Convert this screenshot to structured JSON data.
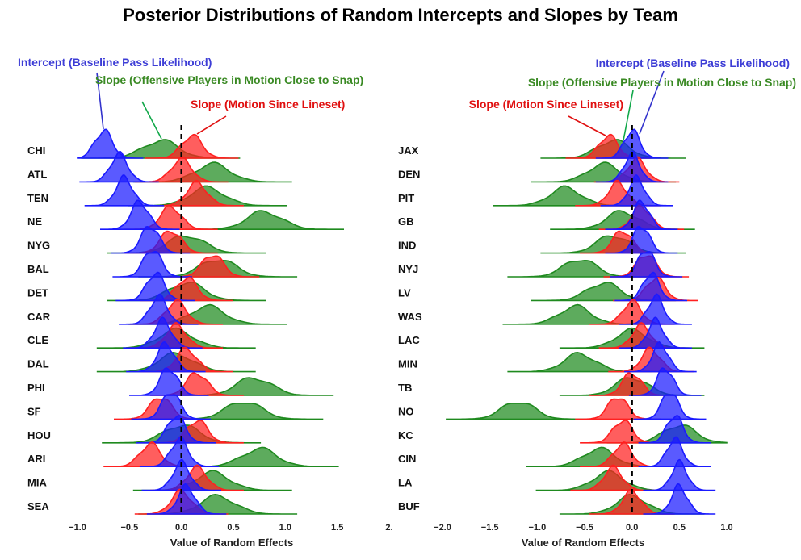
{
  "title": "Posterior Distributions of Random Intercepts and Slopes by Team",
  "colors": {
    "intercept": "#1a1aff",
    "slope_close": "#1f8a1f",
    "slope_lineset": "#ff2020",
    "intercept_text": "#3d3dd6",
    "slope_close_text": "#3a8a24",
    "slope_lineset_text": "#e01010"
  },
  "chart_data": [
    {
      "type": "area",
      "chart_kind": "ridgeline",
      "xlabel": "Value of Random Effects",
      "xlim": [
        -1.0,
        2.0
      ],
      "xticks": [
        "−1.0",
        "−0.5",
        "0.0",
        "0.5",
        "1.0",
        "1.5",
        "2."
      ],
      "reference_line": 0.0,
      "annotations": {
        "intercept": "Intercept (Baseline Pass Likelihood)",
        "slope_close": "Slope (Offensive Players in Motion Close to Snap)",
        "slope_lineset": "Slope (Motion Since Lineset)"
      },
      "categories": [
        "CHI",
        "ATL",
        "TEN",
        "NE",
        "NYG",
        "BAL",
        "DET",
        "CAR",
        "CLE",
        "DAL",
        "PHI",
        "SF",
        "HOU",
        "ARI",
        "MIA",
        "SEA"
      ],
      "series": [
        {
          "name": "Intercept (Baseline Pass Likelihood)",
          "key": "intercept",
          "values": [
            -0.75,
            -0.6,
            -0.55,
            -0.4,
            -0.3,
            -0.28,
            -0.25,
            -0.22,
            -0.18,
            -0.15,
            -0.12,
            -0.1,
            -0.05,
            -0.02,
            0.0,
            0.05
          ]
        },
        {
          "name": "Slope (Offensive Players in Motion Close to Snap)",
          "key": "slope_close",
          "values": [
            -0.2,
            0.3,
            0.25,
            0.8,
            0.05,
            0.35,
            0.05,
            0.25,
            -0.05,
            -0.05,
            0.7,
            0.6,
            0.0,
            0.75,
            0.3,
            0.35
          ]
        },
        {
          "name": "Slope (Motion Since Lineset)",
          "key": "slope_lineset",
          "values": [
            0.1,
            0.0,
            0.15,
            -0.1,
            -0.1,
            0.3,
            0.05,
            -0.05,
            -0.05,
            0.05,
            0.15,
            -0.2,
            0.15,
            -0.3,
            0.15,
            0.0
          ]
        }
      ]
    },
    {
      "type": "area",
      "chart_kind": "ridgeline",
      "xlabel": "Value of Random Effects",
      "xlim": [
        -2.0,
        1.0
      ],
      "xticks": [
        "−2.0",
        "−1.5",
        "−1.0",
        "−0.5",
        "0.0",
        "0.5",
        "1.0"
      ],
      "reference_line": 0.0,
      "annotations": {
        "intercept": "Intercept (Baseline Pass Likelihood)",
        "slope_close": "Slope (Offensive Players in Motion Close to Snap)",
        "slope_lineset": "Slope (Motion Since Lineset)"
      },
      "categories": [
        "JAX",
        "DEN",
        "PIT",
        "GB",
        "IND",
        "NYJ",
        "LV",
        "WAS",
        "LAC",
        "MIN",
        "TB",
        "NO",
        "KC",
        "CIN",
        "LA",
        "BUF"
      ],
      "series": [
        {
          "name": "Intercept (Baseline Pass Likelihood)",
          "key": "intercept",
          "values": [
            0.0,
            0.0,
            0.05,
            0.1,
            0.1,
            0.15,
            0.2,
            0.25,
            0.25,
            0.3,
            0.35,
            0.4,
            0.45,
            0.45,
            0.5,
            0.5
          ]
        },
        {
          "name": "Slope (Offensive Players in Motion Close to Snap)",
          "key": "slope_close",
          "values": [
            -0.2,
            -0.3,
            -0.7,
            -0.1,
            -0.2,
            -0.55,
            -0.3,
            -0.6,
            0.0,
            -0.55,
            0.0,
            -1.2,
            0.5,
            -0.35,
            -0.25,
            0.0
          ]
        },
        {
          "name": "Slope (Motion Since Lineset)",
          "key": "slope_lineset",
          "values": [
            -0.25,
            0.05,
            -0.15,
            0.1,
            -0.1,
            0.15,
            0.25,
            0.0,
            0.1,
            0.2,
            0.0,
            -0.15,
            -0.1,
            -0.1,
            -0.2,
            0.0
          ]
        }
      ]
    }
  ]
}
